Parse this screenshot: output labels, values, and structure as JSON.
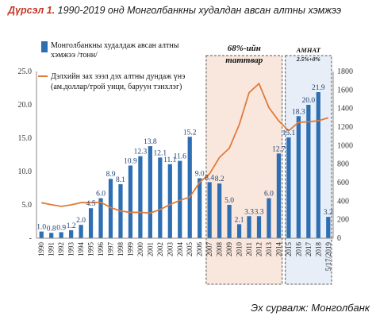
{
  "caption": {
    "label": "Дүрсэл 1.",
    "text": "1990-2019 онд Монголбанкны худалдан авсан алтны хэмжээ"
  },
  "source": "Эх сурвалж: Монголбанк",
  "chart_data": {
    "type": "bar",
    "categories": [
      "1990",
      "1991",
      "1992",
      "1993",
      "1994",
      "1995",
      "1996",
      "1997",
      "1998",
      "1999",
      "2000",
      "2001",
      "2002",
      "2003",
      "2004",
      "2005",
      "2006",
      "2007",
      "2008",
      "2009",
      "2010",
      "2011",
      "2012",
      "2013",
      "2014",
      "2015",
      "2016",
      "2017",
      "2018",
      "5/17/2019"
    ],
    "series": [
      {
        "name": "Монголбанкны худалдаж авсан алтны хэмжээ /тонн/",
        "chart": "bar",
        "axis": "left",
        "color": "#2e6fb3",
        "values": [
          1.0,
          0.8,
          0.9,
          1.2,
          2.0,
          4.5,
          6.0,
          8.9,
          8.1,
          10.9,
          12.3,
          13.8,
          12.1,
          11.1,
          11.6,
          15.2,
          9.0,
          8.4,
          8.2,
          5.0,
          2.1,
          3.3,
          3.3,
          6.0,
          12.7,
          15.1,
          18.3,
          20.0,
          21.9,
          3.2
        ],
        "labels": [
          "1.0",
          "0.8",
          "0.9",
          "1.2",
          "2.0",
          "4.5",
          "6.0",
          "8.9",
          "8.1",
          "10.9",
          "12.3",
          "13.8",
          "12.1",
          "11.1",
          "11.6",
          "15.2",
          "9.0",
          "8.4",
          "8.2",
          "5.0",
          "2.1",
          "3.3",
          "3.3",
          "6.0",
          "12.7",
          "15.1",
          "18.3",
          "20.0",
          "21.9",
          "3.2"
        ]
      },
      {
        "name": "Дэлхийн зах зээл дэх алтны дундаж үнэ (ам.доллар/трой унци, баруун тэнхлэг)",
        "chart": "line",
        "axis": "right",
        "color": "#e07b3a",
        "values": [
          383,
          362,
          344,
          360,
          384,
          384,
          388,
          331,
          294,
          279,
          279,
          271,
          310,
          363,
          409,
          444,
          604,
          695,
          872,
          972,
          1225,
          1572,
          1669,
          1411,
          1266,
          1160,
          1251,
          1257,
          1268,
          1300
        ]
      }
    ],
    "left_axis": {
      "ticks": [
        "-",
        "5.0",
        "10.0",
        "15.0",
        "20.0",
        "25.0"
      ],
      "ylim": [
        0,
        25
      ]
    },
    "right_axis": {
      "ticks": [
        "0",
        "200",
        "400",
        "600",
        "800",
        "1000",
        "1200",
        "1400",
        "1600",
        "1800"
      ],
      "ylim": [
        0,
        1800
      ]
    },
    "highlights": [
      {
        "label": "68%-ийн таттвар",
        "from": "2007",
        "to": "2014",
        "fill": "#f9e7dd"
      },
      {
        "label": "АМНАТ 2.5%+0%",
        "from": "2015",
        "to": "5/17/2019",
        "fill": "#e7eef7"
      }
    ],
    "legend_placement": "top-left",
    "grid": false
  }
}
